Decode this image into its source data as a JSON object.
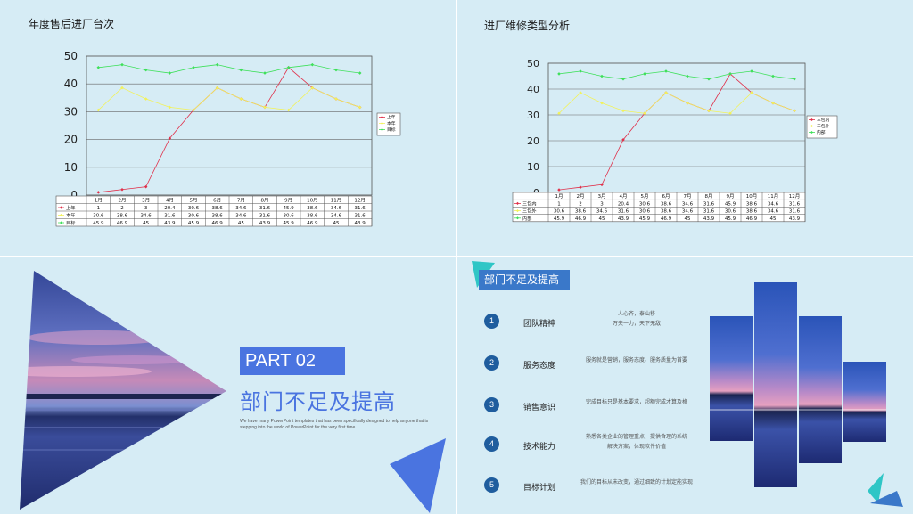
{
  "panel1": {
    "title": "年度售后进厂台次",
    "chart_data": {
      "type": "line",
      "categories": [
        "1月",
        "2月",
        "3月",
        "4月",
        "5月",
        "6月",
        "7月",
        "8月",
        "9月",
        "10月",
        "11月",
        "12月"
      ],
      "series": [
        {
          "name": "上年",
          "color": "#e0304a",
          "values": [
            1,
            2,
            3,
            20.4,
            30.6,
            38.6,
            34.6,
            31.6,
            45.9,
            38.6,
            34.6,
            31.6
          ],
          "labels": [
            "1",
            "2",
            "3",
            "20.4",
            "30.6",
            "38.6",
            "34.6",
            "31.6",
            "45.9",
            "38.6",
            "34.6",
            "31.6"
          ]
        },
        {
          "name": "本年",
          "color": "#f2f25a",
          "values": [
            30.6,
            38.6,
            34.6,
            31.6,
            30.6,
            38.6,
            34.6,
            31.6,
            30.6,
            38.6,
            34.6,
            31.6
          ],
          "labels": [
            "30.6",
            "38.6",
            "34.6",
            "31.6",
            "30.6",
            "38.6",
            "34.6",
            "31.6",
            "30.6",
            "38.6",
            "34.6",
            "31.6"
          ]
        },
        {
          "name": "目标",
          "color": "#3ee05a",
          "values": [
            45.9,
            46.9,
            45,
            43.9,
            45.9,
            46.9,
            45,
            43.9,
            45.9,
            46.9,
            45,
            43.9
          ],
          "labels": [
            "45.9",
            "46.9",
            "45",
            "43.9",
            "45.9",
            "46.9",
            "45",
            "43.9",
            "45.9",
            "46.9",
            "45",
            "43.9"
          ]
        }
      ],
      "ylim": [
        0,
        50
      ],
      "yticks": [
        "0",
        "10",
        "20",
        "30",
        "40",
        "50"
      ],
      "grid": true,
      "legend": "right"
    }
  },
  "panel2": {
    "title": "进厂维修类型分析",
    "chart_data": {
      "type": "line",
      "categories": [
        "1月",
        "2月",
        "3月",
        "4月",
        "5月",
        "6月",
        "7月",
        "8月",
        "9月",
        "10月",
        "11月",
        "12月"
      ],
      "series": [
        {
          "name": "三包内",
          "color": "#e0304a",
          "values": [
            1,
            2,
            3,
            20.4,
            30.6,
            38.6,
            34.6,
            31.6,
            45.9,
            38.6,
            34.6,
            31.6
          ],
          "labels": [
            "1",
            "2",
            "3",
            "20.4",
            "30.6",
            "38.6",
            "34.6",
            "31.6",
            "45.9",
            "38.6",
            "34.6",
            "31.6"
          ]
        },
        {
          "name": "三包外",
          "color": "#f2f25a",
          "values": [
            30.6,
            38.6,
            34.6,
            31.6,
            30.6,
            38.6,
            34.6,
            31.6,
            30.6,
            38.6,
            34.6,
            31.6
          ],
          "labels": [
            "30.6",
            "38.6",
            "34.6",
            "31.6",
            "30.6",
            "38.6",
            "34.6",
            "31.6",
            "30.6",
            "38.6",
            "34.6",
            "31.6"
          ]
        },
        {
          "name": "内部",
          "color": "#3ee05a",
          "values": [
            45.9,
            46.9,
            45,
            43.9,
            45.9,
            46.9,
            45,
            43.9,
            45.9,
            46.9,
            45,
            43.9
          ],
          "labels": [
            "45.9",
            "46.9",
            "45",
            "43.9",
            "45.9",
            "46.9",
            "45",
            "43.9",
            "45.9",
            "46.9",
            "45",
            "43.9"
          ]
        }
      ],
      "ylim": [
        0,
        50
      ],
      "yticks": [
        "0",
        "10",
        "20",
        "30",
        "40",
        "50"
      ],
      "grid": true,
      "legend": "right"
    }
  },
  "panel3": {
    "part_label": "PART 02",
    "title": "部门不足及提高",
    "description": "We have many PowerPoint templates that has been specifically designed to help anyone that is stepping into the world of PowerPoint for the very first time."
  },
  "panel4": {
    "tag": "部门不足及提高",
    "items": [
      {
        "num": "1",
        "label": "团队精神",
        "text": "人心齐，泰山移\n万夫一力，天下无敌"
      },
      {
        "num": "2",
        "label": "服务态度",
        "text": "服务就是营销，服务态度、服务质量为首要"
      },
      {
        "num": "3",
        "label": "销售意识",
        "text": "完成目标只是基本要求，超额完成才算及格"
      },
      {
        "num": "4",
        "label": "技术能力",
        "text": "熟悉各类企业的管理重点，提供合理的系统\n解决方案，体现软件价值"
      },
      {
        "num": "5",
        "label": "目标计划",
        "text": "我们的目标从未改变，通过细致的计划定能实现"
      }
    ]
  },
  "colors": {
    "background": "#d6ecf5",
    "accent": "#4a74e0",
    "badge": "#1f5d9e",
    "teal": "#2fc6c6"
  }
}
